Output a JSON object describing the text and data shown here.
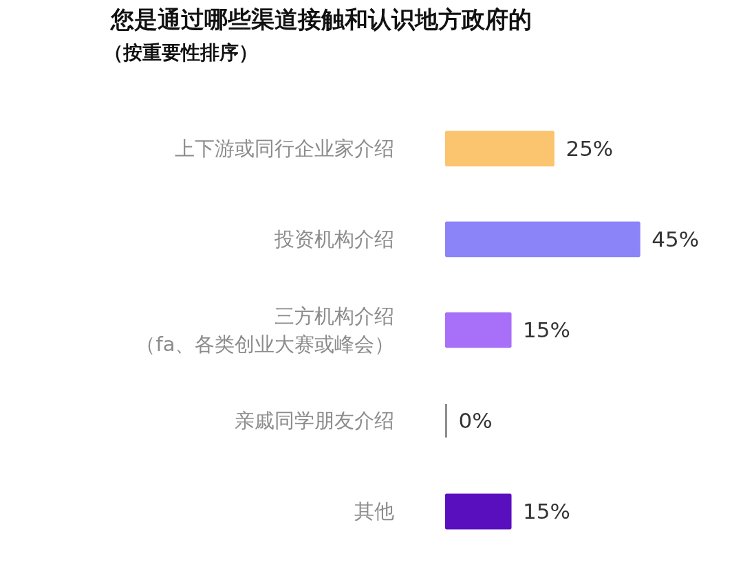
{
  "chart_data": {
    "type": "bar",
    "orientation": "horizontal",
    "title": "您是通过哪些渠道接触和认识地方政府的",
    "subtitle": "（按重要性排序）",
    "categories": [
      "上下游或同行企业家介绍",
      "投资机构介绍",
      "三方机构介绍（fa、各类创业大赛或峰会）",
      "亲戚同学朋友介绍",
      "其他"
    ],
    "values": [
      25,
      45,
      15,
      0,
      15
    ],
    "colors": [
      "#fbc46f",
      "#8b83f8",
      "#a86ff9",
      "#8a8a8a",
      "#5a0fbf"
    ],
    "value_labels": [
      "25%",
      "45%",
      "15%",
      "0%",
      "15%"
    ],
    "tick_labels": "y"
  }
}
